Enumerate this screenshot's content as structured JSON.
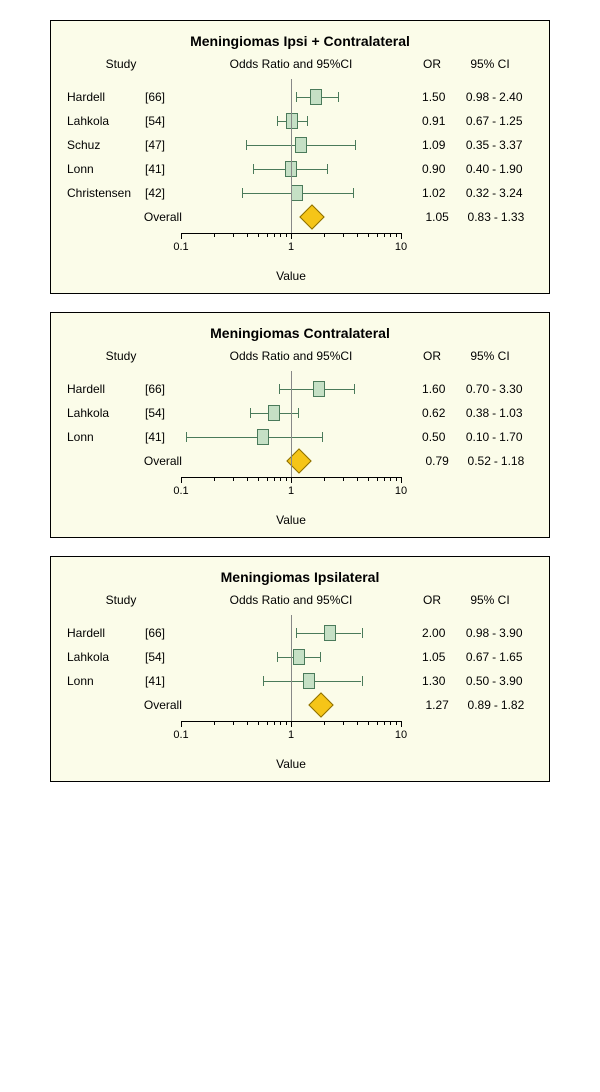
{
  "global": {
    "background_color": "#fbfce9",
    "border_color": "#000000",
    "font_family": "Arial",
    "title_fontsize": 14,
    "label_fontsize": 12,
    "axis_fontsize": 11,
    "scale": "log",
    "xlim": [
      0.1,
      10
    ],
    "major_ticks": [
      0.1,
      1,
      10
    ],
    "minor_ticks": [
      0.2,
      0.3,
      0.4,
      0.5,
      0.6,
      0.7,
      0.8,
      0.9,
      2,
      3,
      4,
      5,
      6,
      7,
      8,
      9
    ],
    "refline_value": 1,
    "refline_color": "#888888",
    "ci_color": "#4a7a5a",
    "box_fill": "#c5e0c5",
    "box_border": "#4a7a5a",
    "diamond_fill": "#f5c518",
    "diamond_border": "#8a6d00",
    "x_axis_label": "Value",
    "col_headers": {
      "study": "Study",
      "plot": "Odds Ratio and 95%CI",
      "or": "OR",
      "ci": "95% CI"
    },
    "overall_label": "Overall"
  },
  "panels": [
    {
      "title": "Meningiomas Ipsi + Contralateral",
      "type": "forest",
      "studies": [
        {
          "name": "Hardell",
          "ref": "[66]",
          "or": "1.50",
          "ci_lo": "0.98",
          "ci_hi": "2.40",
          "or_n": 1.5,
          "lo_n": 0.98,
          "hi_n": 2.4
        },
        {
          "name": "Lahkola",
          "ref": "[54]",
          "or": "0.91",
          "ci_lo": "0.67",
          "ci_hi": "1.25",
          "or_n": 0.91,
          "lo_n": 0.67,
          "hi_n": 1.25
        },
        {
          "name": "Schuz",
          "ref": "[47]",
          "or": "1.09",
          "ci_lo": "0.35",
          "ci_hi": "3.37",
          "or_n": 1.09,
          "lo_n": 0.35,
          "hi_n": 3.37
        },
        {
          "name": "Lonn",
          "ref": "[41]",
          "or": "0.90",
          "ci_lo": "0.40",
          "ci_hi": "1.90",
          "or_n": 0.9,
          "lo_n": 0.4,
          "hi_n": 1.9
        },
        {
          "name": "Christensen",
          "ref": "[42]",
          "or": "1.02",
          "ci_lo": "0.32",
          "ci_hi": "3.24",
          "or_n": 1.02,
          "lo_n": 0.32,
          "hi_n": 3.24
        }
      ],
      "overall": {
        "or": "1.05",
        "ci_lo": "0.83",
        "ci_hi": "1.33",
        "or_n": 1.05,
        "lo_n": 0.83,
        "hi_n": 1.33
      }
    },
    {
      "title": "Meningiomas Contralateral",
      "type": "forest",
      "studies": [
        {
          "name": "Hardell",
          "ref": "[66]",
          "or": "1.60",
          "ci_lo": "0.70",
          "ci_hi": "3.30",
          "or_n": 1.6,
          "lo_n": 0.7,
          "hi_n": 3.3
        },
        {
          "name": "Lahkola",
          "ref": "[54]",
          "or": "0.62",
          "ci_lo": "0.38",
          "ci_hi": "1.03",
          "or_n": 0.62,
          "lo_n": 0.38,
          "hi_n": 1.03
        },
        {
          "name": "Lonn",
          "ref": "[41]",
          "or": "0.50",
          "ci_lo": "0.10",
          "ci_hi": "1.70",
          "or_n": 0.5,
          "lo_n": 0.1,
          "hi_n": 1.7
        }
      ],
      "overall": {
        "or": "0.79",
        "ci_lo": "0.52",
        "ci_hi": "1.18",
        "or_n": 0.79,
        "lo_n": 0.52,
        "hi_n": 1.18
      }
    },
    {
      "title": "Meningiomas Ipsilateral",
      "type": "forest",
      "studies": [
        {
          "name": "Hardell",
          "ref": "[66]",
          "or": "2.00",
          "ci_lo": "0.98",
          "ci_hi": "3.90",
          "or_n": 2.0,
          "lo_n": 0.98,
          "hi_n": 3.9
        },
        {
          "name": "Lahkola",
          "ref": "[54]",
          "or": "1.05",
          "ci_lo": "0.67",
          "ci_hi": "1.65",
          "or_n": 1.05,
          "lo_n": 0.67,
          "hi_n": 1.65
        },
        {
          "name": "Lonn",
          "ref": "[41]",
          "or": "1.30",
          "ci_lo": "0.50",
          "ci_hi": "3.90",
          "or_n": 1.3,
          "lo_n": 0.5,
          "hi_n": 3.9
        }
      ],
      "overall": {
        "or": "1.27",
        "ci_lo": "0.89",
        "ci_hi": "1.82",
        "or_n": 1.27,
        "lo_n": 0.89,
        "hi_n": 1.82
      }
    }
  ]
}
